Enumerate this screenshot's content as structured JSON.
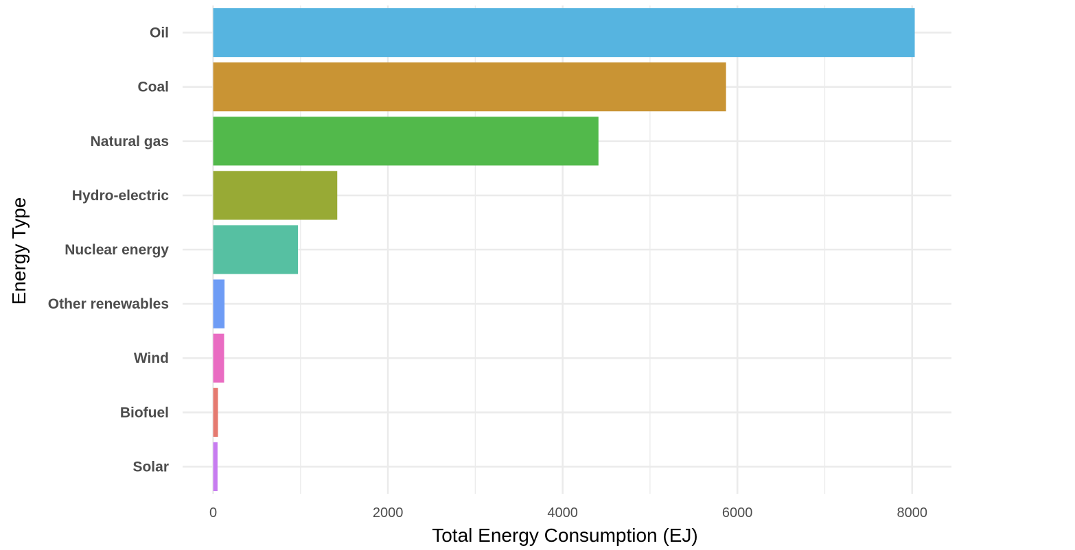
{
  "chart_data": {
    "type": "bar",
    "orientation": "horizontal",
    "title": "",
    "xlabel": "Total Energy Consumption (EJ)",
    "ylabel": "Energy Type",
    "categories": [
      "Oil",
      "Coal",
      "Natural gas",
      "Hydro-electric",
      "Nuclear energy",
      "Other renewables",
      "Wind",
      "Biofuel",
      "Solar"
    ],
    "values": [
      8030,
      5870,
      4410,
      1420,
      970,
      130,
      125,
      55,
      50
    ],
    "colors": [
      "#56B4E0",
      "#C99434",
      "#52B94B",
      "#98AA35",
      "#56C0A2",
      "#6E9CF5",
      "#E96CC2",
      "#E57A70",
      "#C77CF0"
    ],
    "x_ticks": [
      0,
      2000,
      4000,
      6000,
      8000
    ],
    "xlim": [
      -350,
      8450
    ],
    "grid": true,
    "legend": "none"
  }
}
